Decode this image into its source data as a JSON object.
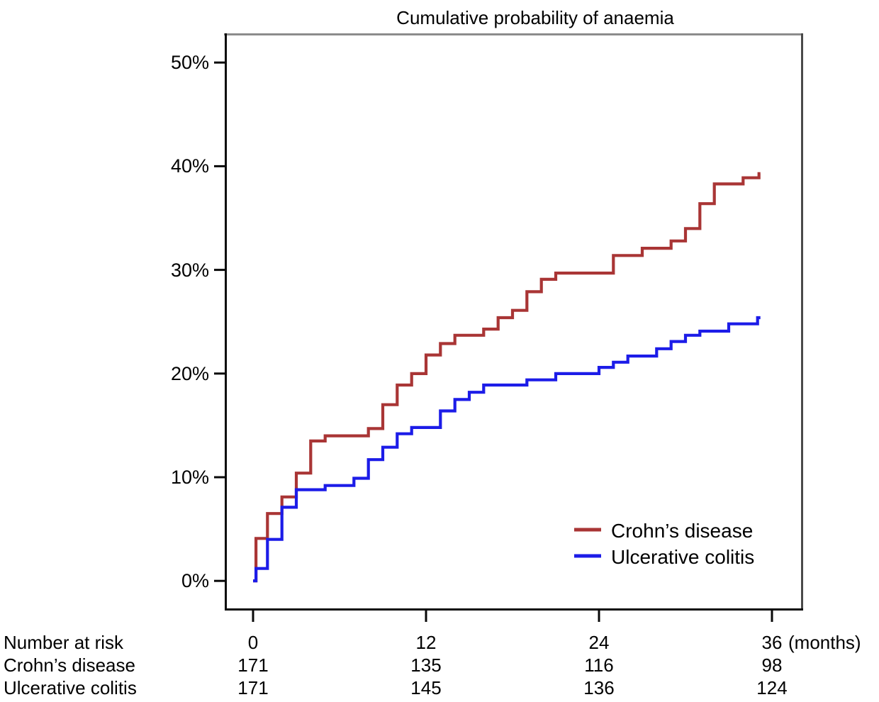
{
  "chart_data": {
    "type": "line",
    "step": true,
    "title": "Cumulative probability of anaemia",
    "xlabel": "(months)",
    "ylabel": "",
    "x_ticks": [
      "0",
      "12",
      "24",
      "36"
    ],
    "x_tick_values": [
      0,
      12,
      24,
      36
    ],
    "x_suffix": "(months)",
    "xlim": [
      0,
      36
    ],
    "end_month": 35.2,
    "y_ticks": [
      "50%",
      "40%",
      "30%",
      "20%",
      "10%",
      "0%"
    ],
    "y_tick_values_pct": [
      50,
      40,
      30,
      20,
      10,
      0
    ],
    "ylim_pct": [
      0,
      52
    ],
    "grid": false,
    "legend_position": "inside-bottom-right",
    "series": [
      {
        "name": "Crohn’s disease",
        "color": "#A93535",
        "steps_month_pct": [
          [
            0,
            0
          ],
          [
            0.2,
            4.1
          ],
          [
            1,
            6.5
          ],
          [
            2,
            8.1
          ],
          [
            3,
            10.4
          ],
          [
            4,
            13.5
          ],
          [
            5,
            14.0
          ],
          [
            8,
            14.7
          ],
          [
            9,
            17.0
          ],
          [
            10,
            18.9
          ],
          [
            11,
            20.0
          ],
          [
            12,
            21.8
          ],
          [
            13,
            22.9
          ],
          [
            14,
            23.7
          ],
          [
            16,
            24.3
          ],
          [
            17,
            25.4
          ],
          [
            18,
            26.1
          ],
          [
            19,
            27.9
          ],
          [
            20,
            29.1
          ],
          [
            21,
            29.7
          ],
          [
            25,
            31.4
          ],
          [
            27,
            32.1
          ],
          [
            29,
            32.8
          ],
          [
            30,
            34.0
          ],
          [
            31,
            36.4
          ],
          [
            32,
            38.3
          ],
          [
            34,
            38.9
          ],
          [
            35.1,
            39.3
          ]
        ]
      },
      {
        "name": "Ulcerative colitis",
        "color": "#1C1CE8",
        "steps_month_pct": [
          [
            0,
            0
          ],
          [
            0.2,
            1.2
          ],
          [
            1,
            4.0
          ],
          [
            2,
            7.1
          ],
          [
            3,
            8.8
          ],
          [
            5,
            9.2
          ],
          [
            7,
            9.9
          ],
          [
            8,
            11.7
          ],
          [
            9,
            12.9
          ],
          [
            10,
            14.2
          ],
          [
            11,
            14.8
          ],
          [
            13,
            16.4
          ],
          [
            14,
            17.5
          ],
          [
            15,
            18.2
          ],
          [
            16,
            18.9
          ],
          [
            19,
            19.4
          ],
          [
            21,
            20.0
          ],
          [
            24,
            20.6
          ],
          [
            25,
            21.1
          ],
          [
            26,
            21.7
          ],
          [
            28,
            22.4
          ],
          [
            29,
            23.1
          ],
          [
            30,
            23.7
          ],
          [
            31,
            24.1
          ],
          [
            33,
            24.8
          ],
          [
            35,
            25.4
          ]
        ]
      }
    ]
  },
  "risk_table": {
    "header": "Number at risk",
    "tick_labels": [
      "0",
      "12",
      "24",
      "36"
    ],
    "rows": [
      {
        "label": "Crohn’s disease",
        "values": [
          "171",
          "135",
          "116",
          "98"
        ]
      },
      {
        "label": "Ulcerative colitis",
        "values": [
          "171",
          "145",
          "136",
          "124"
        ]
      }
    ]
  }
}
